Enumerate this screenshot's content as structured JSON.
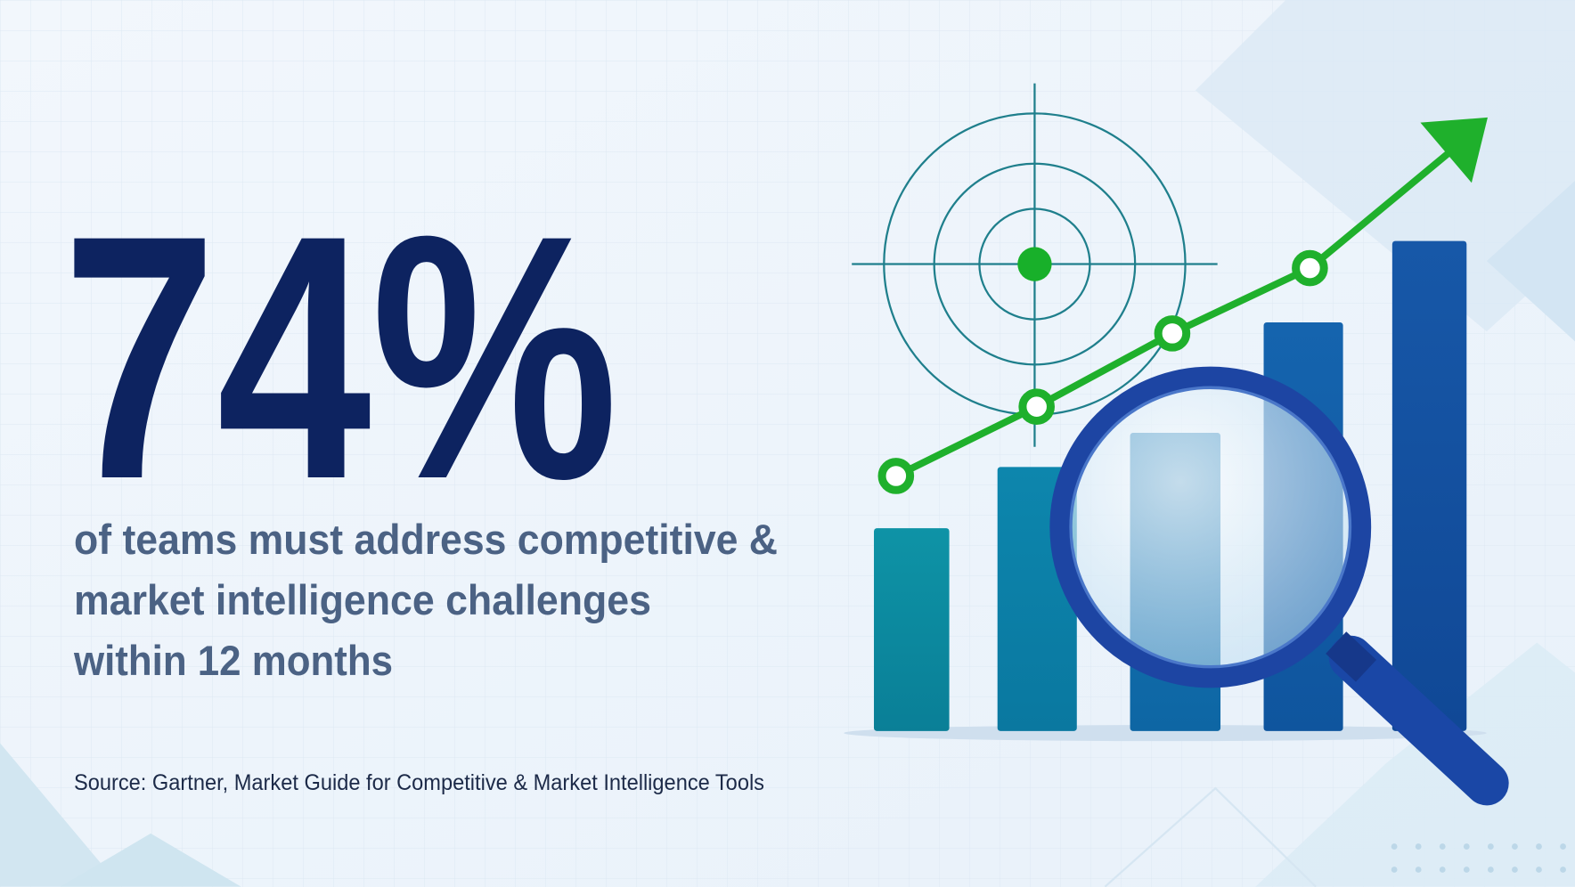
{
  "stat": "74%",
  "description": [
    "of teams must address competitive &",
    "market intelligence challenges",
    "within 12 months"
  ],
  "source": "Source: Gartner, Market Guide for Competitive & Market Intelligence Tools"
}
